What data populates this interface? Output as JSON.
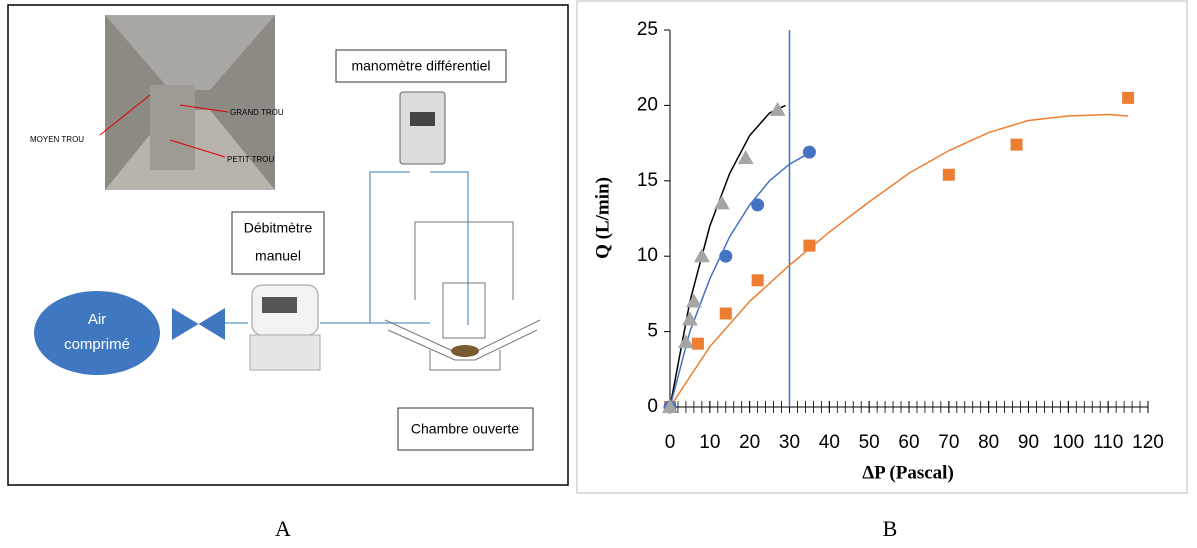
{
  "panel_labels": [
    "A",
    "B"
  ],
  "diagram": {
    "photo_labels": [
      "MOYEN TROU",
      "GRAND TROU",
      "PETIT TROU"
    ],
    "manometer": "manomètre différentiel",
    "flowmeter": [
      "Débitmètre",
      "manuel"
    ],
    "air": [
      "Air",
      "comprimé"
    ],
    "chamber": "Chambre ouverte"
  },
  "chart_data": {
    "type": "scatter",
    "xlabel": "ΔP (Pascal)",
    "ylabel": "Q (L/min)",
    "xlim": [
      0,
      120
    ],
    "ylim": [
      0,
      25
    ],
    "xticks": [
      0,
      10,
      20,
      30,
      40,
      50,
      60,
      70,
      80,
      90,
      100,
      110,
      120
    ],
    "yticks": [
      0,
      5,
      10,
      15,
      20,
      25
    ],
    "x_minor_ticks": true,
    "vline": {
      "x": 30,
      "color": "#4472c4"
    },
    "series": [
      {
        "type": "line",
        "color": "#000000",
        "x": [
          0,
          5,
          10,
          15,
          20,
          25,
          29
        ],
        "values": [
          0,
          7,
          12,
          15.5,
          18,
          19.5,
          20
        ]
      },
      {
        "type": "line",
        "color": "#4472c4",
        "x": [
          0,
          5,
          10,
          15,
          20,
          25,
          30,
          34
        ],
        "values": [
          0,
          5,
          8.5,
          11.3,
          13.4,
          15,
          16.1,
          16.7
        ]
      },
      {
        "type": "line",
        "color": "#ed7d31",
        "x": [
          0,
          10,
          20,
          30,
          40,
          50,
          60,
          70,
          80,
          90,
          100,
          110,
          115
        ],
        "values": [
          0,
          4,
          7,
          9.4,
          11.6,
          13.6,
          15.5,
          17,
          18.2,
          19,
          19.3,
          19.4,
          19.3
        ]
      },
      {
        "type": "scatter",
        "marker": "square",
        "color": "#ed7d31",
        "x": [
          0,
          7,
          14,
          22,
          35,
          70,
          87,
          115
        ],
        "values": [
          0,
          4.2,
          6.2,
          8.4,
          10.7,
          15.4,
          17.4,
          20.5
        ]
      },
      {
        "type": "scatter",
        "marker": "circle",
        "color": "#4472c4",
        "x": [
          0,
          14,
          22,
          35
        ],
        "values": [
          0,
          10,
          13.4,
          16.9
        ]
      },
      {
        "type": "scatter",
        "marker": "triangle",
        "color": "#a5a5a5",
        "x": [
          0,
          4,
          5,
          6,
          8,
          13,
          19,
          27
        ],
        "values": [
          0,
          4.3,
          5.8,
          7,
          10,
          13.5,
          16.5,
          19.7
        ]
      }
    ]
  }
}
